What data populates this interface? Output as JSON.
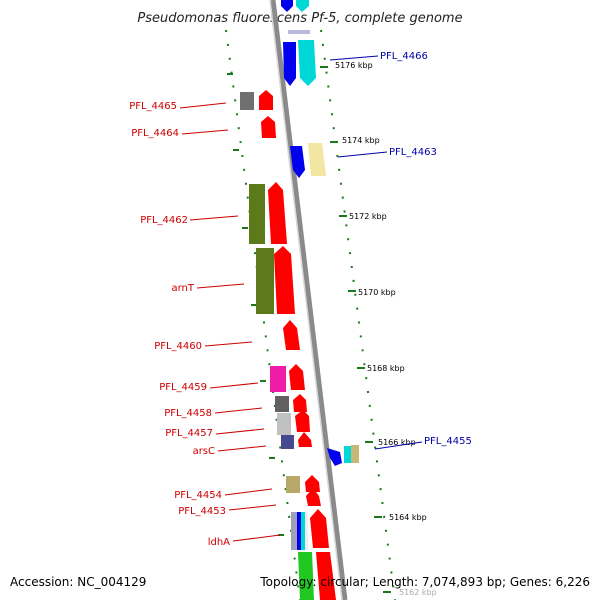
{
  "title": "Pseudomonas fluorescens Pf-5, complete genome",
  "footer": {
    "accession": "Accession: NC_004129",
    "summary": "Topology: circular; Length: 7,074,893 bp; Genes: 6,226"
  },
  "colors": {
    "backbone": "#8a8a8a",
    "tick": "#1a7a1a",
    "label_left": "#cc0000",
    "label_right": "#0000aa"
  },
  "ticks": [
    "5176 kbp",
    "5174 kbp",
    "5172 kbp",
    "5170 kbp",
    "5168 kbp",
    "5166 kbp",
    "5164 kbp",
    "5162 kbp"
  ],
  "left_labels": [
    "PFL_4465",
    "PFL_4464",
    "PFL_4462",
    "arnT",
    "PFL_4460",
    "PFL_4459",
    "PFL_4458",
    "PFL_4457",
    "arsC",
    "PFL_4454",
    "PFL_4453",
    "ldhA"
  ],
  "right_labels": [
    "PFL_4466",
    "PFL_4463",
    "PFL_4455"
  ]
}
